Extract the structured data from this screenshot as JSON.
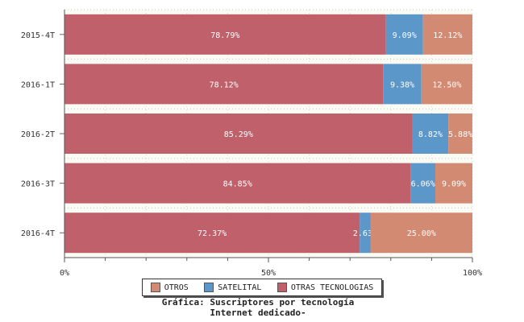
{
  "chart_data": {
    "type": "bar",
    "orientation": "horizontal",
    "stacked": true,
    "categories": [
      "2015-4T",
      "2016-1T",
      "2016-2T",
      "2016-3T",
      "2016-4T"
    ],
    "series": [
      {
        "name": "OTRAS TECNOLOGIAS",
        "color": "#c0606a",
        "values": [
          78.79,
          78.12,
          85.29,
          84.85,
          72.37
        ],
        "labels": [
          "78.79%",
          "78.12%",
          "85.29%",
          "84.85%",
          "72.37%"
        ]
      },
      {
        "name": "SATELITAL",
        "color": "#5b97c9",
        "values": [
          9.09,
          9.38,
          8.82,
          6.06,
          2.63
        ],
        "labels": [
          "9.09%",
          "9.38%",
          "8.82%",
          "6.06%",
          "2.63%"
        ]
      },
      {
        "name": "OTROS",
        "color": "#d28a72",
        "values": [
          12.12,
          12.5,
          5.88,
          9.09,
          25.0
        ],
        "labels": [
          "12.12%",
          "12.50%",
          "5.88%",
          "9.09%",
          "25.00%"
        ]
      }
    ],
    "xlim": [
      0,
      100
    ],
    "x_ticks": [
      "0%",
      "50%",
      "100%"
    ],
    "grid": true,
    "legend_position": "bottom"
  },
  "legend": [
    "OTROS",
    "SATELITAL",
    "OTRAS TECNOLOGIAS"
  ],
  "caption": {
    "line1": "Gráfica: Suscriptores por tecnología",
    "line2": "Internet dedicado-"
  }
}
